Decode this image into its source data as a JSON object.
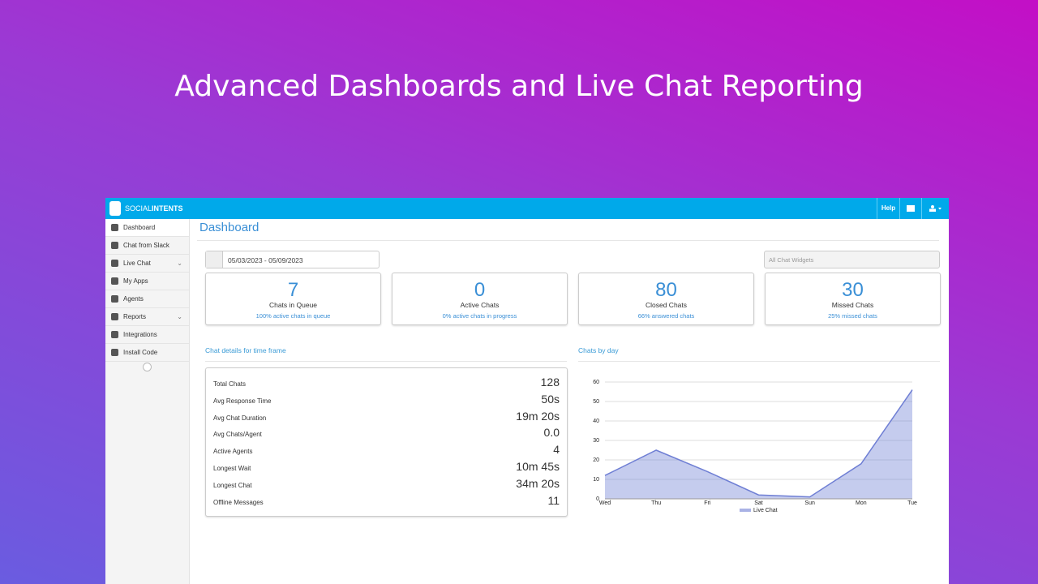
{
  "headline": "Advanced Dashboards and Live Chat Reporting",
  "brand": {
    "prefix": "SOCIAL",
    "suffix": "INTENTS"
  },
  "topbar": {
    "help": "Help"
  },
  "sidebar": [
    {
      "label": "Dashboard"
    },
    {
      "label": "Chat from Slack"
    },
    {
      "label": "Live Chat",
      "expandable": true
    },
    {
      "label": "My Apps"
    },
    {
      "label": "Agents"
    },
    {
      "label": "Reports",
      "expandable": true
    },
    {
      "label": "Integrations"
    },
    {
      "label": "Install Code"
    }
  ],
  "page_title": "Dashboard",
  "date_range": "05/03/2023 - 05/09/2023",
  "widget_select": "All Chat Widgets",
  "stats": [
    {
      "value": 7,
      "label": "Chats in Queue",
      "sub": "100% active chats in queue"
    },
    {
      "value": 0,
      "label": "Active Chats",
      "sub": "0% active chats in progress"
    },
    {
      "value": 80,
      "label": "Closed Chats",
      "sub": "66% answered chats"
    },
    {
      "value": 30,
      "label": "Missed Chats",
      "sub": "25% missed chats"
    }
  ],
  "details_title": "Chat details for time frame",
  "details": [
    {
      "label": "Total Chats",
      "value": 128
    },
    {
      "label": "Avg Response Time",
      "value": "50s"
    },
    {
      "label": "Avg Chat Duration",
      "value": "19m 20s"
    },
    {
      "label": "Avg Chats/Agent",
      "value": "0.0"
    },
    {
      "label": "Active Agents",
      "value": 4
    },
    {
      "label": "Longest Wait",
      "value": "10m 45s"
    },
    {
      "label": "Longest Chat",
      "value": "34m 20s"
    },
    {
      "label": "Offline Messages",
      "value": 11
    }
  ],
  "chart_title": "Chats by day",
  "chart_data": {
    "type": "area",
    "categories": [
      "Wed",
      "Thu",
      "Fri",
      "Sat",
      "Sun",
      "Mon",
      "Tue"
    ],
    "series": [
      {
        "name": "Live Chat",
        "color": "#6f7fd4",
        "values": [
          12,
          25,
          14,
          2,
          1,
          18,
          56
        ]
      }
    ],
    "ylim": [
      0,
      60
    ],
    "yticks": [
      0,
      10,
      20,
      30,
      40,
      50,
      60
    ],
    "grid": true
  }
}
